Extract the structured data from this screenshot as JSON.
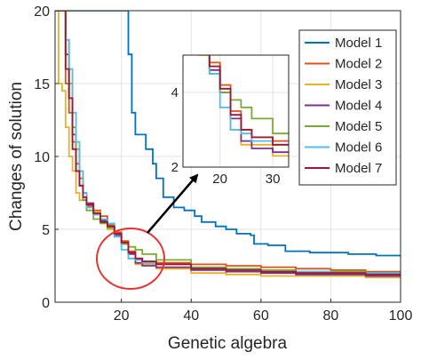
{
  "chart_data": {
    "type": "line",
    "xlabel": "Genetic algebra",
    "ylabel": "Changes of solution",
    "xlim": [
      1,
      100
    ],
    "ylim": [
      0,
      20
    ],
    "xticks": [
      20,
      40,
      60,
      80,
      100
    ],
    "yticks": [
      0,
      5,
      10,
      15,
      20
    ],
    "grid": true,
    "legend_position": "top-right",
    "colors": {
      "Model 1": "#0072BD",
      "Model 2": "#D95319",
      "Model 3": "#EDB120",
      "Model 4": "#7E2F8E",
      "Model 5": "#77AC30",
      "Model 6": "#4DBEEE",
      "Model 7": "#A2142F"
    },
    "series": [
      {
        "name": "Model 1",
        "points": [
          [
            1,
            20
          ],
          [
            10,
            20
          ],
          [
            20,
            20
          ],
          [
            22,
            17
          ],
          [
            23,
            13
          ],
          [
            24,
            11.5
          ],
          [
            26,
            11.5
          ],
          [
            27,
            10.5
          ],
          [
            29,
            9.5
          ],
          [
            30,
            8.5
          ],
          [
            32,
            7.2
          ],
          [
            35,
            6.5
          ],
          [
            38,
            6.3
          ],
          [
            41,
            5.9
          ],
          [
            43,
            5.5
          ],
          [
            47,
            5.2
          ],
          [
            50,
            5.0
          ],
          [
            53,
            4.7
          ],
          [
            57,
            4.6
          ],
          [
            58,
            4.0
          ],
          [
            61,
            4.0
          ],
          [
            62,
            3.9
          ],
          [
            66,
            3.9
          ],
          [
            67,
            3.5
          ],
          [
            73,
            3.5
          ],
          [
            74,
            3.4
          ],
          [
            80,
            3.4
          ],
          [
            85,
            3.3
          ],
          [
            90,
            3.3
          ],
          [
            93,
            3.2
          ],
          [
            100,
            3.2
          ]
        ]
      },
      {
        "name": "Model 2",
        "points": [
          [
            1,
            20
          ],
          [
            3,
            20
          ],
          [
            4,
            15
          ],
          [
            5,
            13
          ],
          [
            6,
            11
          ],
          [
            7,
            9.5
          ],
          [
            8,
            8.5
          ],
          [
            9,
            7
          ],
          [
            10,
            6.6
          ],
          [
            12,
            6.3
          ],
          [
            14,
            5.9
          ],
          [
            16,
            5.3
          ],
          [
            18,
            4.8
          ],
          [
            20,
            4.2
          ],
          [
            22,
            3.5
          ],
          [
            24,
            3.0
          ],
          [
            26,
            2.8
          ],
          [
            30,
            2.7
          ],
          [
            40,
            2.6
          ],
          [
            50,
            2.5
          ],
          [
            60,
            2.4
          ],
          [
            70,
            2.3
          ],
          [
            80,
            2.2
          ],
          [
            90,
            2.1
          ],
          [
            100,
            2.1
          ]
        ]
      },
      {
        "name": "Model 3",
        "points": [
          [
            1,
            20
          ],
          [
            2,
            15
          ],
          [
            3,
            14.5
          ],
          [
            4,
            12
          ],
          [
            5,
            10
          ],
          [
            6,
            9
          ],
          [
            7,
            7.5
          ],
          [
            8,
            7
          ],
          [
            10,
            6.5
          ],
          [
            12,
            6.2
          ],
          [
            14,
            5.6
          ],
          [
            16,
            5.0
          ],
          [
            18,
            4.7
          ],
          [
            20,
            4.0
          ],
          [
            22,
            3.0
          ],
          [
            24,
            2.6
          ],
          [
            30,
            2.3
          ],
          [
            40,
            2.0
          ],
          [
            50,
            1.9
          ],
          [
            60,
            1.8
          ],
          [
            70,
            1.8
          ],
          [
            80,
            1.8
          ],
          [
            90,
            1.7
          ],
          [
            100,
            1.7
          ]
        ]
      },
      {
        "name": "Model 4",
        "points": [
          [
            1,
            20
          ],
          [
            3,
            20
          ],
          [
            4,
            17
          ],
          [
            5,
            14
          ],
          [
            6,
            11.5
          ],
          [
            7,
            9
          ],
          [
            8,
            8
          ],
          [
            9,
            7.5
          ],
          [
            10,
            6.8
          ],
          [
            12,
            6.0
          ],
          [
            14,
            5.6
          ],
          [
            16,
            5.2
          ],
          [
            18,
            4.6
          ],
          [
            20,
            4.0
          ],
          [
            22,
            3.3
          ],
          [
            24,
            2.7
          ],
          [
            26,
            2.5
          ],
          [
            30,
            2.4
          ],
          [
            40,
            2.2
          ],
          [
            50,
            2.1
          ],
          [
            60,
            2.0
          ],
          [
            70,
            1.9
          ],
          [
            80,
            1.9
          ],
          [
            90,
            1.8
          ],
          [
            100,
            1.8
          ]
        ]
      },
      {
        "name": "Model 5",
        "points": [
          [
            1,
            20
          ],
          [
            3,
            20
          ],
          [
            4,
            18
          ],
          [
            5,
            15
          ],
          [
            6,
            12
          ],
          [
            7,
            10.5
          ],
          [
            8,
            9
          ],
          [
            9,
            7
          ],
          [
            10,
            6.3
          ],
          [
            12,
            5.7
          ],
          [
            14,
            5.4
          ],
          [
            16,
            5.1
          ],
          [
            18,
            4.5
          ],
          [
            20,
            4.0
          ],
          [
            22,
            3.8
          ],
          [
            24,
            3.6
          ],
          [
            26,
            3.3
          ],
          [
            30,
            2.9
          ],
          [
            40,
            2.4
          ],
          [
            50,
            2.3
          ],
          [
            60,
            2.2
          ],
          [
            70,
            2.1
          ],
          [
            80,
            2.1
          ],
          [
            90,
            2.0
          ],
          [
            100,
            2.0
          ]
        ]
      },
      {
        "name": "Model 6",
        "points": [
          [
            1,
            20
          ],
          [
            3,
            20
          ],
          [
            4,
            18
          ],
          [
            5,
            16
          ],
          [
            6,
            13
          ],
          [
            7,
            11
          ],
          [
            8,
            9
          ],
          [
            9,
            7.5
          ],
          [
            10,
            6.5
          ],
          [
            12,
            6.0
          ],
          [
            14,
            5.7
          ],
          [
            16,
            5.4
          ],
          [
            18,
            4.5
          ],
          [
            20,
            3.6
          ],
          [
            22,
            3.0
          ],
          [
            24,
            2.9
          ],
          [
            26,
            2.7
          ],
          [
            30,
            2.6
          ],
          [
            40,
            2.3
          ],
          [
            50,
            2.2
          ],
          [
            60,
            2.1
          ],
          [
            70,
            2.1
          ],
          [
            80,
            2.0
          ],
          [
            90,
            2.0
          ],
          [
            100,
            1.9
          ]
        ]
      },
      {
        "name": "Model 7",
        "points": [
          [
            1,
            20
          ],
          [
            3,
            20
          ],
          [
            4,
            16
          ],
          [
            5,
            14
          ],
          [
            6,
            10.5
          ],
          [
            7,
            9
          ],
          [
            8,
            8
          ],
          [
            9,
            7.2
          ],
          [
            10,
            6.7
          ],
          [
            12,
            6.1
          ],
          [
            14,
            5.5
          ],
          [
            16,
            5.2
          ],
          [
            18,
            4.7
          ],
          [
            20,
            4.1
          ],
          [
            22,
            3.4
          ],
          [
            24,
            3.0
          ],
          [
            26,
            2.8
          ],
          [
            30,
            2.6
          ],
          [
            40,
            2.3
          ],
          [
            50,
            2.2
          ],
          [
            60,
            2.1
          ],
          [
            70,
            2.0
          ],
          [
            80,
            2.0
          ],
          [
            90,
            1.9
          ],
          [
            100,
            1.9
          ]
        ]
      }
    ],
    "inset": {
      "xlim": [
        13,
        33
      ],
      "ylim": [
        2,
        5
      ],
      "xticks": [
        20,
        30
      ],
      "yticks": [
        2,
        4
      ]
    },
    "annotations": {
      "circle_center": [
        24,
        3.0
      ],
      "arrow": "from highlighted region to inset"
    }
  }
}
